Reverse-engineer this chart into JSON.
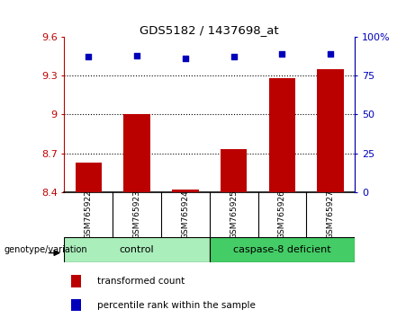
{
  "title": "GDS5182 / 1437698_at",
  "samples": [
    "GSM765922",
    "GSM765923",
    "GSM765924",
    "GSM765925",
    "GSM765926",
    "GSM765927"
  ],
  "bar_values": [
    8.63,
    9.0,
    8.42,
    8.73,
    9.28,
    9.35
  ],
  "percentile_values": [
    87,
    88,
    86,
    87,
    89,
    89
  ],
  "bar_color": "#bb0000",
  "dot_color": "#0000bb",
  "ylim_left": [
    8.4,
    9.6
  ],
  "ylim_right": [
    0,
    100
  ],
  "yticks_left": [
    8.4,
    8.7,
    9.0,
    9.3,
    9.6
  ],
  "ytick_labels_left": [
    "8.4",
    "8.7",
    "9",
    "9.3",
    "9.6"
  ],
  "yticks_right": [
    0,
    25,
    50,
    75,
    100
  ],
  "ytick_labels_right": [
    "0",
    "25",
    "50",
    "75",
    "100%"
  ],
  "hlines": [
    8.7,
    9.0,
    9.3
  ],
  "groups": [
    {
      "label": "control",
      "indices": [
        0,
        1,
        2
      ],
      "color": "#aaeebb"
    },
    {
      "label": "caspase-8 deficient",
      "indices": [
        3,
        4,
        5
      ],
      "color": "#44cc66"
    }
  ],
  "genotype_label": "genotype/variation",
  "legend_bar_label": "transformed count",
  "legend_dot_label": "percentile rank within the sample",
  "bar_width": 0.55,
  "label_box_color": "#d8d8d8",
  "fig_width": 4.61,
  "fig_height": 3.54,
  "fig_dpi": 100
}
